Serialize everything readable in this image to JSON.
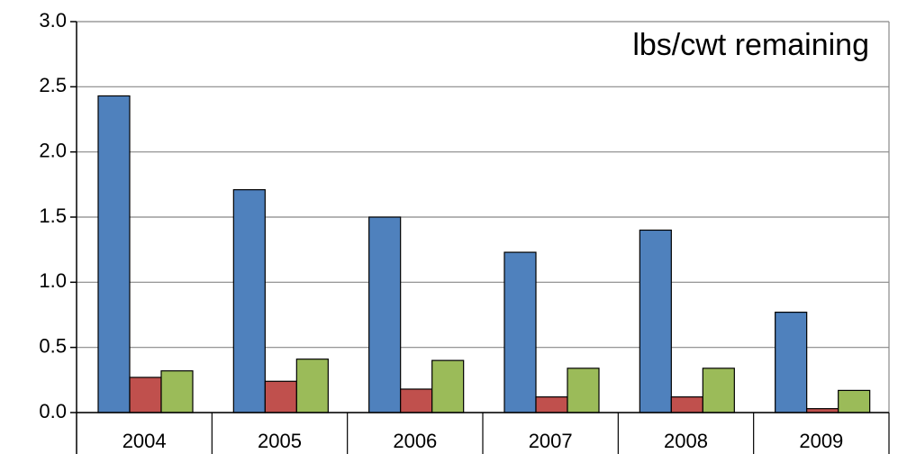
{
  "chart_data": {
    "type": "bar",
    "title": "lbs/cwt remaining",
    "categories": [
      "2004",
      "2005",
      "2006",
      "2007",
      "2008",
      "2009"
    ],
    "series": [
      {
        "color": "#4f81bd",
        "values": [
          2.43,
          1.71,
          1.5,
          1.23,
          1.4,
          0.77
        ]
      },
      {
        "color": "#c0504d",
        "values": [
          0.27,
          0.24,
          0.18,
          0.12,
          0.12,
          0.03
        ]
      },
      {
        "color": "#9bbb59",
        "values": [
          0.32,
          0.41,
          0.4,
          0.34,
          0.34,
          0.17
        ]
      }
    ],
    "ylim": [
      0,
      3
    ],
    "yticks": [
      {
        "value": 0,
        "label": "0.0"
      },
      {
        "value": 0.5,
        "label": "0.5"
      },
      {
        "value": 1,
        "label": "1.0"
      },
      {
        "value": 1.5,
        "label": "1.5"
      },
      {
        "value": 2,
        "label": "2.0"
      },
      {
        "value": 2.5,
        "label": "2.5"
      },
      {
        "value": 3,
        "label": "3.0"
      }
    ],
    "grid": true
  }
}
